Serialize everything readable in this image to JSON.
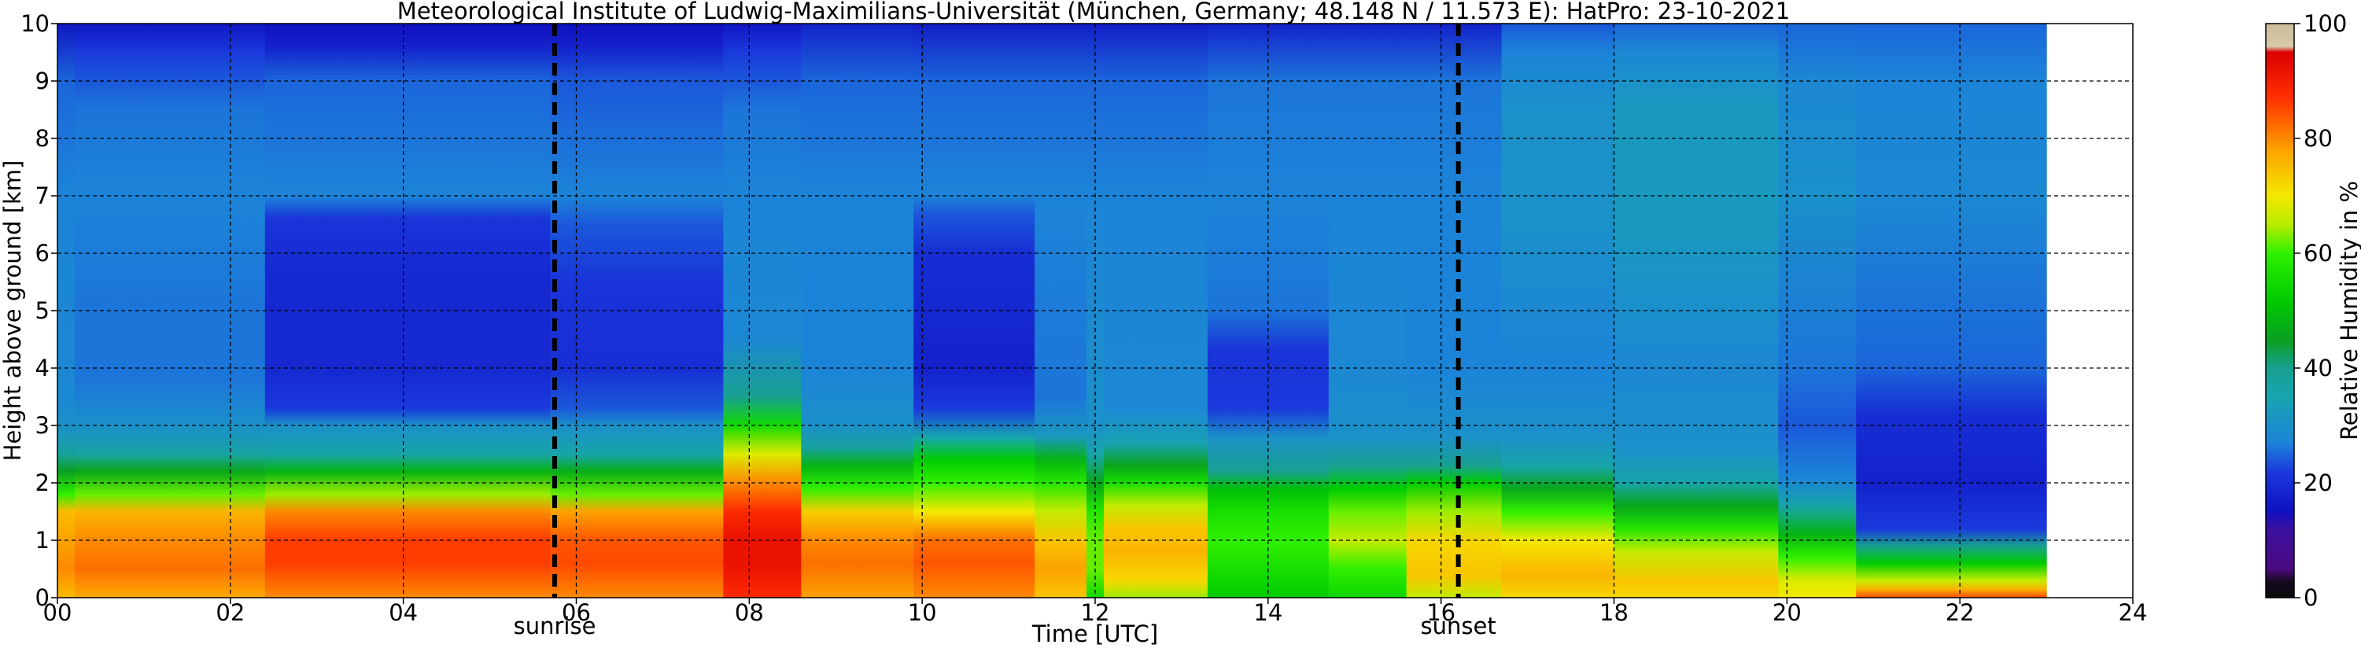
{
  "chart_data": {
    "type": "heatmap",
    "title": "Meteorological Institute of Ludwig-Maximilians-Universität (München, Germany; 48.148 N / 11.573 E):    HatPro: 23-10-2021",
    "xlabel": "Time [UTC]",
    "ylabel": "Height above ground [km]",
    "xlim": [
      0,
      24
    ],
    "ylim": [
      0,
      10
    ],
    "x_ticks": [
      "00",
      "02",
      "04",
      "06",
      "08",
      "10",
      "12",
      "14",
      "16",
      "18",
      "20",
      "22",
      "24"
    ],
    "x_tick_values": [
      0,
      2,
      4,
      6,
      8,
      10,
      12,
      14,
      16,
      18,
      20,
      22,
      24
    ],
    "y_ticks": [
      "0",
      "1",
      "2",
      "3",
      "4",
      "5",
      "6",
      "7",
      "8",
      "9",
      "10"
    ],
    "y_tick_values": [
      0,
      1,
      2,
      3,
      4,
      5,
      6,
      7,
      8,
      9,
      10
    ],
    "grid": true,
    "data_time_range": [
      0,
      23
    ],
    "markers": [
      {
        "label": "sunrise",
        "x": 5.75
      },
      {
        "label": "sunset",
        "x": 16.2
      }
    ],
    "colorbar": {
      "label": "Relative Humidity in %",
      "range": [
        0,
        100
      ],
      "ticks": [
        "0",
        "20",
        "40",
        "60",
        "80",
        "100"
      ],
      "tick_values": [
        0,
        20,
        40,
        60,
        80,
        100
      ],
      "stops": [
        {
          "v": 0,
          "c": "#0a0a0a"
        },
        {
          "v": 3,
          "c": "#1a0a25"
        },
        {
          "v": 5,
          "c": "#4a0a80"
        },
        {
          "v": 12,
          "c": "#3a10a0"
        },
        {
          "v": 15,
          "c": "#1010c0"
        },
        {
          "v": 22,
          "c": "#1a3adc"
        },
        {
          "v": 27,
          "c": "#1c84d8"
        },
        {
          "v": 35,
          "c": "#18a5b0"
        },
        {
          "v": 40,
          "c": "#18a090"
        },
        {
          "v": 45,
          "c": "#0aa020"
        },
        {
          "v": 52,
          "c": "#00cc00"
        },
        {
          "v": 60,
          "c": "#30f000"
        },
        {
          "v": 65,
          "c": "#b8ec00"
        },
        {
          "v": 70,
          "c": "#f4e800"
        },
        {
          "v": 78,
          "c": "#fca200"
        },
        {
          "v": 87,
          "c": "#ff3000"
        },
        {
          "v": 95,
          "c": "#dd0000"
        },
        {
          "v": 96,
          "c": "#d7c8a8"
        },
        {
          "v": 100,
          "c": "#cbbd9c"
        }
      ]
    },
    "time_segments": [
      {
        "t": [
          0.0,
          0.2
        ],
        "rh": [
          [
            0,
            75
          ],
          [
            0.5,
            80
          ],
          [
            1,
            78
          ],
          [
            1.5,
            75
          ],
          [
            1.8,
            60
          ],
          [
            2.2,
            45
          ],
          [
            2.5,
            38
          ],
          [
            3,
            30
          ],
          [
            3.5,
            28
          ],
          [
            7,
            27
          ],
          [
            9,
            25
          ],
          [
            10,
            16
          ]
        ]
      },
      {
        "t": [
          0.2,
          2.4
        ],
        "rh": [
          [
            0,
            77
          ],
          [
            0.5,
            82
          ],
          [
            1,
            80
          ],
          [
            1.5,
            76
          ],
          [
            1.8,
            62
          ],
          [
            2.2,
            46
          ],
          [
            2.5,
            37
          ],
          [
            3,
            30
          ],
          [
            3.8,
            26
          ],
          [
            5,
            26
          ],
          [
            7,
            27
          ],
          [
            8.5,
            26
          ],
          [
            9.5,
            22
          ],
          [
            10,
            16
          ]
        ]
      },
      {
        "t": [
          2.4,
          5.7
        ],
        "rh": [
          [
            0,
            80
          ],
          [
            0.6,
            86
          ],
          [
            1,
            86
          ],
          [
            1.5,
            80
          ],
          [
            1.8,
            64
          ],
          [
            2.2,
            48
          ],
          [
            2.5,
            36
          ],
          [
            3,
            30
          ],
          [
            3.3,
            22
          ],
          [
            4,
            19
          ],
          [
            5.5,
            19
          ],
          [
            6.6,
            21
          ],
          [
            7,
            27
          ],
          [
            9,
            25
          ],
          [
            9.6,
            18
          ],
          [
            10,
            15
          ]
        ]
      },
      {
        "t": [
          5.7,
          7.7
        ],
        "rh": [
          [
            0,
            80
          ],
          [
            0.6,
            85
          ],
          [
            1,
            84
          ],
          [
            1.5,
            78
          ],
          [
            1.8,
            62
          ],
          [
            2.2,
            47
          ],
          [
            2.5,
            36
          ],
          [
            3,
            30
          ],
          [
            3.3,
            24
          ],
          [
            4,
            20
          ],
          [
            5.5,
            21
          ],
          [
            6.5,
            24
          ],
          [
            7,
            27
          ],
          [
            9,
            24
          ],
          [
            9.6,
            18
          ],
          [
            10,
            15
          ]
        ]
      },
      {
        "t": [
          7.7,
          8.6
        ],
        "rh": [
          [
            0,
            88
          ],
          [
            0.6,
            92
          ],
          [
            1,
            92
          ],
          [
            1.5,
            88
          ],
          [
            2,
            80
          ],
          [
            2.5,
            68
          ],
          [
            3,
            55
          ],
          [
            3.5,
            40
          ],
          [
            4.5,
            28
          ],
          [
            7,
            27
          ],
          [
            8.5,
            26
          ],
          [
            9.5,
            22
          ],
          [
            10,
            16
          ]
        ]
      },
      {
        "t": [
          8.6,
          9.9
        ],
        "rh": [
          [
            0,
            78
          ],
          [
            0.6,
            82
          ],
          [
            1,
            80
          ],
          [
            1.5,
            73
          ],
          [
            1.9,
            60
          ],
          [
            2.3,
            48
          ],
          [
            2.6,
            38
          ],
          [
            3,
            30
          ],
          [
            4,
            27
          ],
          [
            7,
            27
          ],
          [
            9,
            25
          ],
          [
            10,
            18
          ]
        ]
      },
      {
        "t": [
          9.9,
          11.3
        ],
        "rh": [
          [
            0,
            80
          ],
          [
            0.6,
            84
          ],
          [
            1,
            82
          ],
          [
            1.5,
            70
          ],
          [
            2,
            60
          ],
          [
            2.4,
            52
          ],
          [
            2.8,
            35
          ],
          [
            3.3,
            22
          ],
          [
            4,
            18
          ],
          [
            6,
            20
          ],
          [
            6.7,
            24
          ],
          [
            7,
            27
          ],
          [
            9,
            25
          ],
          [
            10,
            17
          ]
        ]
      },
      {
        "t": [
          11.3,
          11.9
        ],
        "rh": [
          [
            0,
            74
          ],
          [
            0.5,
            78
          ],
          [
            1,
            74
          ],
          [
            1.5,
            66
          ],
          [
            2,
            58
          ],
          [
            2.4,
            48
          ],
          [
            2.8,
            32
          ],
          [
            3.5,
            26
          ],
          [
            7,
            27
          ],
          [
            9,
            25
          ],
          [
            10,
            17
          ]
        ]
      },
      {
        "t": [
          11.9,
          12.1
        ],
        "rh": [
          [
            0,
            55
          ],
          [
            0.5,
            62
          ],
          [
            1,
            62
          ],
          [
            1.5,
            58
          ],
          [
            2,
            46
          ],
          [
            2.5,
            36
          ],
          [
            3,
            30
          ],
          [
            7,
            27
          ],
          [
            9,
            25
          ],
          [
            10,
            17
          ]
        ]
      },
      {
        "t": [
          12.1,
          13.3
        ],
        "rh": [
          [
            0,
            64
          ],
          [
            0.3,
            72
          ],
          [
            0.8,
            76
          ],
          [
            1.2,
            74
          ],
          [
            1.6,
            66
          ],
          [
            2,
            56
          ],
          [
            2.3,
            46
          ],
          [
            2.7,
            34
          ],
          [
            3.3,
            28
          ],
          [
            7,
            27
          ],
          [
            9,
            25
          ],
          [
            10,
            17
          ]
        ]
      },
      {
        "t": [
          13.3,
          14.7
        ],
        "rh": [
          [
            0,
            52
          ],
          [
            0.5,
            56
          ],
          [
            1,
            60
          ],
          [
            1.5,
            56
          ],
          [
            1.9,
            50
          ],
          [
            2.2,
            40
          ],
          [
            2.8,
            30
          ],
          [
            3.3,
            22
          ],
          [
            4.3,
            21
          ],
          [
            5,
            26
          ],
          [
            7,
            27
          ],
          [
            9,
            26
          ],
          [
            10,
            18
          ]
        ]
      },
      {
        "t": [
          14.7,
          15.6
        ],
        "rh": [
          [
            0,
            54
          ],
          [
            0.5,
            60
          ],
          [
            1,
            66
          ],
          [
            1.5,
            62
          ],
          [
            1.9,
            52
          ],
          [
            2.3,
            40
          ],
          [
            2.8,
            30
          ],
          [
            4,
            28
          ],
          [
            7,
            27
          ],
          [
            9,
            26
          ],
          [
            10,
            18
          ]
        ]
      },
      {
        "t": [
          15.6,
          16.7
        ],
        "rh": [
          [
            0,
            66
          ],
          [
            0.4,
            74
          ],
          [
            1,
            72
          ],
          [
            1.5,
            64
          ],
          [
            2,
            52
          ],
          [
            2.3,
            40
          ],
          [
            2.8,
            30
          ],
          [
            4,
            27
          ],
          [
            7,
            27
          ],
          [
            9,
            26
          ],
          [
            10,
            18
          ]
        ]
      },
      {
        "t": [
          16.7,
          18.0
        ],
        "rh": [
          [
            0,
            72
          ],
          [
            0.4,
            76
          ],
          [
            1,
            70
          ],
          [
            1.5,
            60
          ],
          [
            1.9,
            46
          ],
          [
            2.3,
            36
          ],
          [
            2.8,
            30
          ],
          [
            4,
            27
          ],
          [
            6.5,
            30
          ],
          [
            8.5,
            30
          ],
          [
            9.5,
            27
          ],
          [
            10,
            24
          ]
        ]
      },
      {
        "t": [
          18.0,
          19.9
        ],
        "rh": [
          [
            0,
            72
          ],
          [
            0.3,
            74
          ],
          [
            0.8,
            66
          ],
          [
            1.2,
            58
          ],
          [
            1.6,
            46
          ],
          [
            2,
            36
          ],
          [
            2.6,
            30
          ],
          [
            4,
            28
          ],
          [
            6.5,
            32
          ],
          [
            8.5,
            32
          ],
          [
            9.5,
            28
          ],
          [
            10,
            25
          ]
        ]
      },
      {
        "t": [
          19.9,
          20.8
        ],
        "rh": [
          [
            0,
            70
          ],
          [
            0.3,
            68
          ],
          [
            0.7,
            60
          ],
          [
            1.1,
            48
          ],
          [
            1.6,
            36
          ],
          [
            2.1,
            27
          ],
          [
            3,
            24
          ],
          [
            4,
            26
          ],
          [
            7,
            30
          ],
          [
            9,
            28
          ],
          [
            10,
            25
          ]
        ]
      },
      {
        "t": [
          20.8,
          23.0
        ],
        "rh": [
          [
            0,
            85
          ],
          [
            0.15,
            76
          ],
          [
            0.3,
            66
          ],
          [
            0.6,
            52
          ],
          [
            0.9,
            40
          ],
          [
            1.2,
            22
          ],
          [
            2,
            18
          ],
          [
            3.2,
            20
          ],
          [
            4,
            25
          ],
          [
            7,
            28
          ],
          [
            9,
            27
          ],
          [
            10,
            25
          ]
        ]
      }
    ]
  }
}
